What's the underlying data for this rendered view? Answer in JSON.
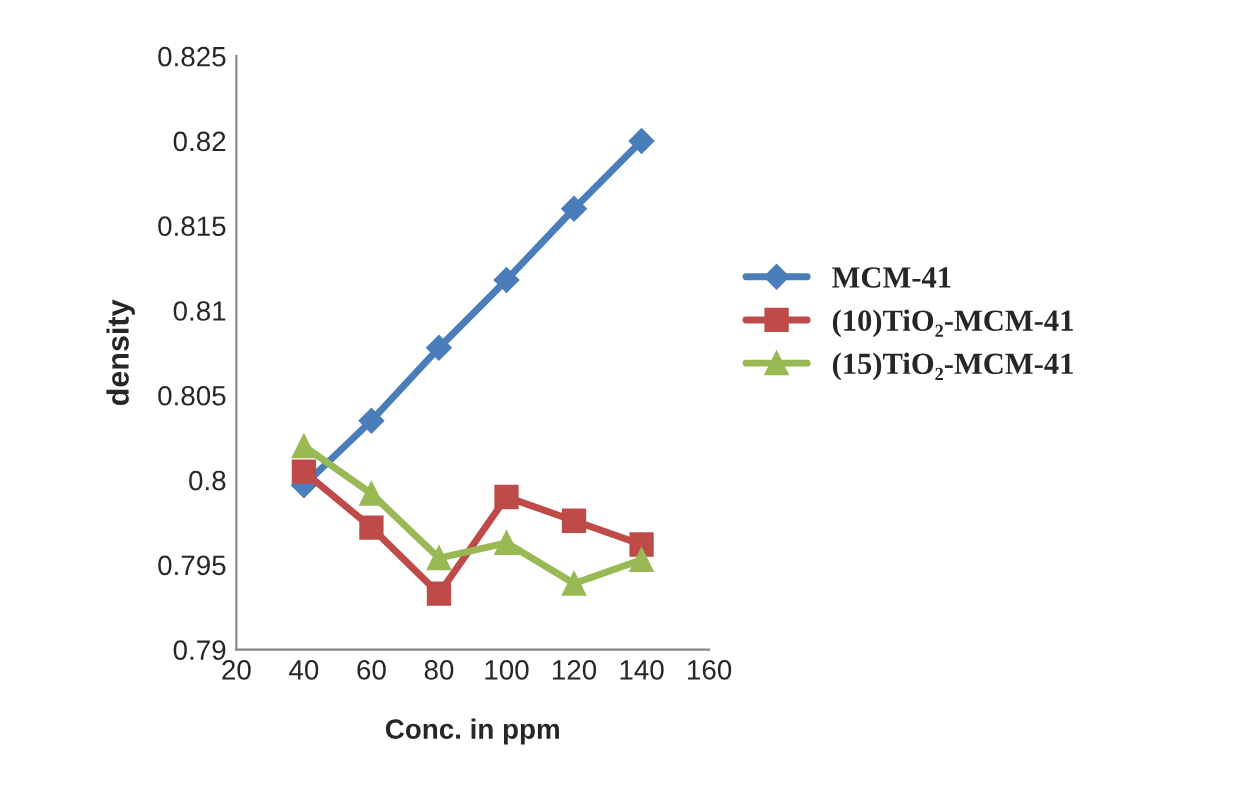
{
  "chart_data": {
    "type": "line",
    "xlabel": "Conc. in ppm",
    "ylabel": "density",
    "x": [
      40,
      60,
      80,
      100,
      120,
      140
    ],
    "series": [
      {
        "name": "MCM-41",
        "color": "#4a7ebb",
        "marker": "diamond",
        "values": [
          0.7997,
          0.8035,
          0.8078,
          0.8118,
          0.816,
          0.82
        ]
      },
      {
        "name": "(10)TiO₂-MCM-41",
        "color": "#be4b48",
        "marker": "square",
        "values": [
          0.8005,
          0.7972,
          0.7933,
          0.799,
          0.7976,
          0.7962
        ]
      },
      {
        "name": "(15)TiO₂-MCM-41",
        "color": "#98b954",
        "marker": "triangle",
        "values": [
          0.802,
          0.7992,
          0.7954,
          0.7963,
          0.7939,
          0.7953
        ]
      }
    ],
    "xlim": [
      20,
      160
    ],
    "xticks": [
      20,
      40,
      60,
      80,
      100,
      120,
      140,
      160
    ],
    "ylim": [
      0.79,
      0.825
    ],
    "yticks": [
      0.79,
      0.795,
      0.8,
      0.805,
      0.81,
      0.815,
      0.82,
      0.825
    ],
    "grid": false,
    "legend": "right"
  }
}
